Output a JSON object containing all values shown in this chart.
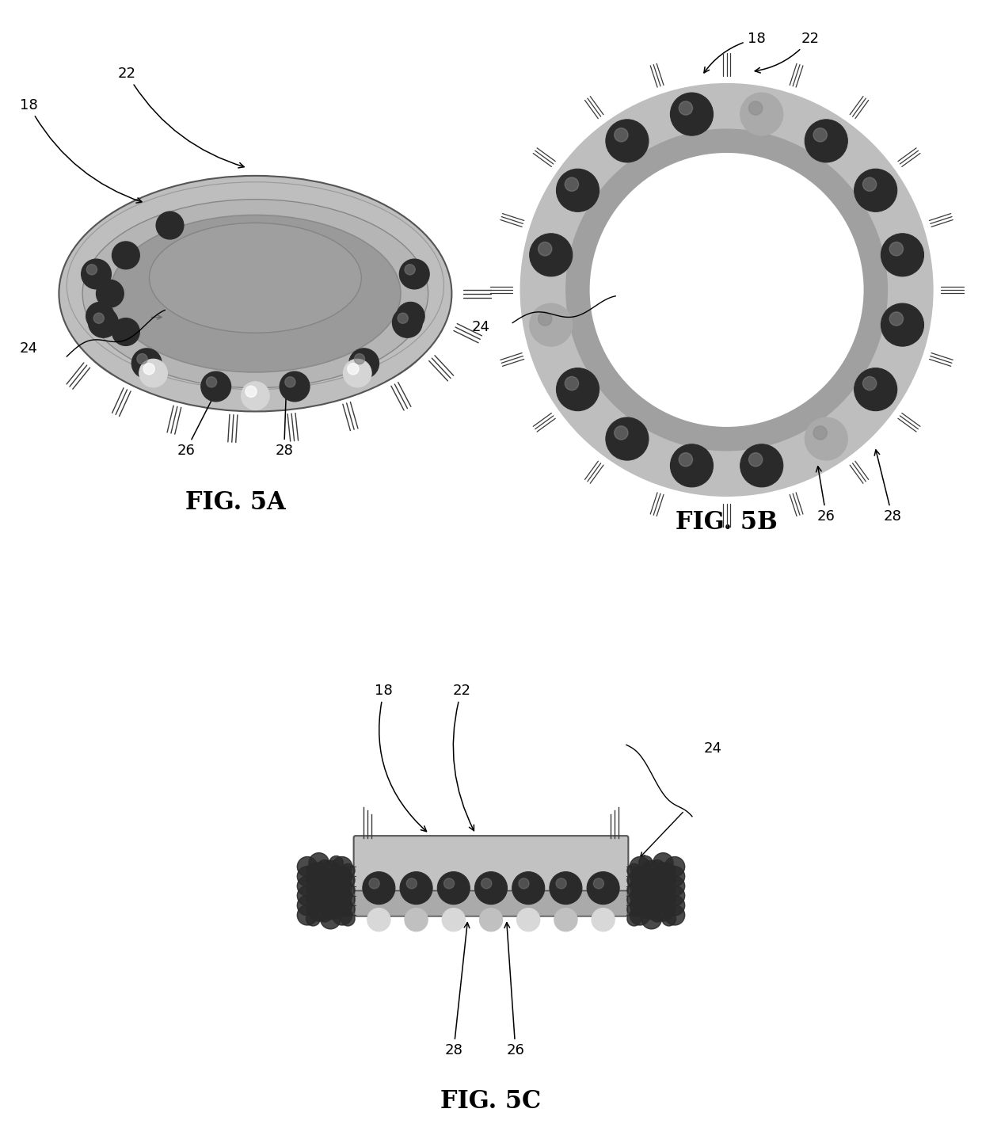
{
  "background_color": "#ffffff",
  "fig_width": 12.4,
  "fig_height": 14.43,
  "fig5a_label": "FIG. 5A",
  "fig5b_label": "FIG. 5B",
  "fig5c_label": "FIG. 5C",
  "label_fontsize": 13,
  "title_fontsize": 22,
  "ring_gray_outer": "#bebebe",
  "ring_gray_mid": "#a8a8a8",
  "ring_gray_inner": "#c5c5c5",
  "ring_dark": "#3a3a3a",
  "sphere_dark": "#2a2a2a",
  "sphere_mid": "#555555",
  "sphere_light": "#aaaaaa",
  "sphere_very_light": "#d5d5d5",
  "pin_color": "#3a3a3a",
  "pcb_color": "#c2c2c2",
  "pcb_dark": "#999999"
}
